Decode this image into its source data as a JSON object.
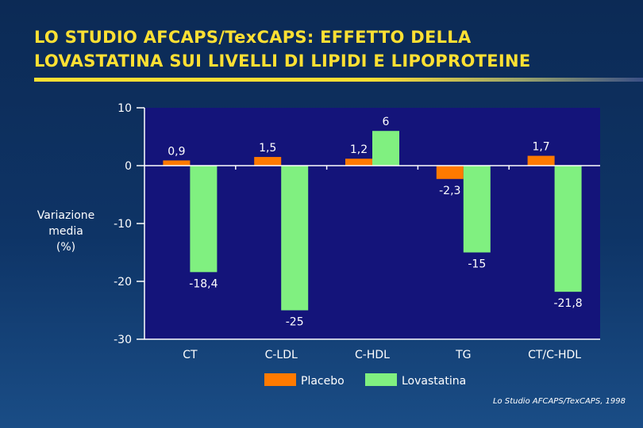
{
  "header": {
    "title_line1": "LO STUDIO AFCAPS/TexCAPS: EFFETTO DELLA",
    "title_line2": "LOVASTATINA SUI LIVELLI DI LIPIDI E LIPOPROTEINE"
  },
  "source": "Lo Studio AFCAPS/TexCAPS, 1998",
  "chart_data": {
    "type": "bar",
    "title": "",
    "xlabel": "",
    "ylabel_lines": [
      "Variazione",
      "media",
      "(%)"
    ],
    "categories": [
      "CT",
      "C-LDL",
      "C-HDL",
      "TG",
      "CT/C-HDL"
    ],
    "series": [
      {
        "name": "Placebo",
        "color": "#ff7a00",
        "values": [
          0.9,
          1.5,
          1.2,
          -2.3,
          1.7
        ],
        "labels": [
          "0,9",
          "1,5",
          "1,2",
          "-2,3",
          "1,7"
        ]
      },
      {
        "name": "Lovastatina",
        "color": "#80f080",
        "values": [
          -18.4,
          -25,
          6,
          -15,
          -21.8
        ],
        "labels": [
          "-18,4",
          "-25",
          "6",
          "-15",
          "-21,8"
        ]
      }
    ],
    "ylim": [
      -30,
      10
    ],
    "yticks": [
      10,
      0,
      -10,
      -20,
      -30
    ],
    "plot_background": "#14147a",
    "grid": false,
    "legend": "bottom"
  }
}
